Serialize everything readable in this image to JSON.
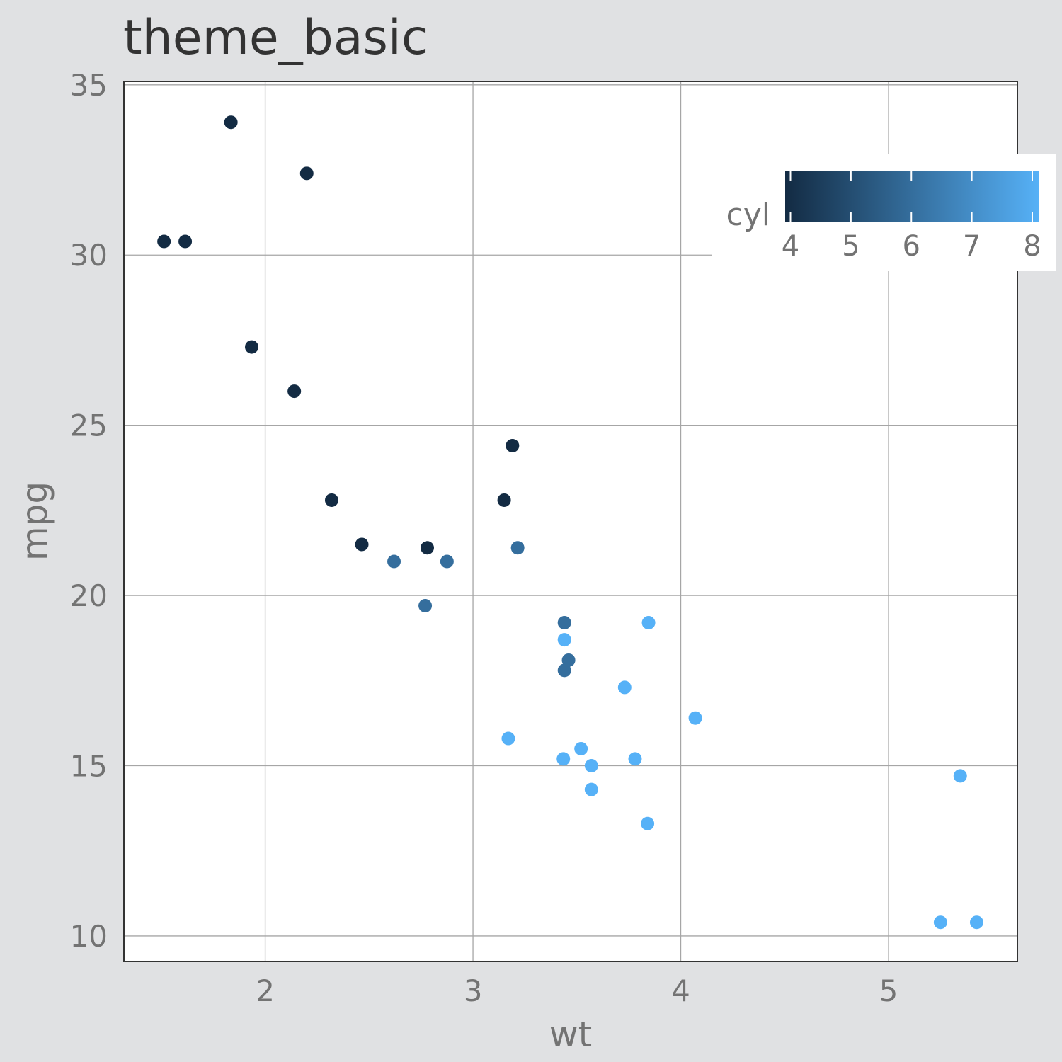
{
  "chart_data": {
    "type": "scatter",
    "title": "theme_basic",
    "xlabel": "wt",
    "ylabel": "mpg",
    "xlim": [
      1.32,
      5.62
    ],
    "ylim": [
      9.25,
      35.1
    ],
    "x_ticks": [
      2,
      3,
      4,
      5
    ],
    "y_ticks": [
      10,
      15,
      20,
      25,
      30,
      35
    ],
    "grid": true,
    "legend": {
      "title": "cyl",
      "type": "colorbar",
      "placement": "top-right",
      "ticks": [
        4,
        5,
        6,
        7,
        8
      ],
      "low_color": "#132B43",
      "high_color": "#56B1F7"
    },
    "colors": {
      "background": "#e0e1e3",
      "panel": "#ffffff",
      "grid": "#a6a6a6",
      "low": "#132B43",
      "high": "#56B1F7"
    },
    "points": [
      {
        "x": 2.62,
        "y": 21.0,
        "cyl": 6
      },
      {
        "x": 2.875,
        "y": 21.0,
        "cyl": 6
      },
      {
        "x": 2.32,
        "y": 22.8,
        "cyl": 4
      },
      {
        "x": 3.215,
        "y": 21.4,
        "cyl": 6
      },
      {
        "x": 3.44,
        "y": 18.7,
        "cyl": 8
      },
      {
        "x": 3.46,
        "y": 18.1,
        "cyl": 6
      },
      {
        "x": 3.57,
        "y": 14.3,
        "cyl": 8
      },
      {
        "x": 3.19,
        "y": 24.4,
        "cyl": 4
      },
      {
        "x": 3.15,
        "y": 22.8,
        "cyl": 4
      },
      {
        "x": 3.44,
        "y": 19.2,
        "cyl": 6
      },
      {
        "x": 3.44,
        "y": 17.8,
        "cyl": 6
      },
      {
        "x": 4.07,
        "y": 16.4,
        "cyl": 8
      },
      {
        "x": 3.73,
        "y": 17.3,
        "cyl": 8
      },
      {
        "x": 3.78,
        "y": 15.2,
        "cyl": 8
      },
      {
        "x": 5.25,
        "y": 10.4,
        "cyl": 8
      },
      {
        "x": 5.424,
        "y": 10.4,
        "cyl": 8
      },
      {
        "x": 5.345,
        "y": 14.7,
        "cyl": 8
      },
      {
        "x": 2.2,
        "y": 32.4,
        "cyl": 4
      },
      {
        "x": 1.615,
        "y": 30.4,
        "cyl": 4
      },
      {
        "x": 1.835,
        "y": 33.9,
        "cyl": 4
      },
      {
        "x": 2.465,
        "y": 21.5,
        "cyl": 4
      },
      {
        "x": 3.52,
        "y": 15.5,
        "cyl": 8
      },
      {
        "x": 3.435,
        "y": 15.2,
        "cyl": 8
      },
      {
        "x": 3.84,
        "y": 13.3,
        "cyl": 8
      },
      {
        "x": 3.845,
        "y": 19.2,
        "cyl": 8
      },
      {
        "x": 1.935,
        "y": 27.3,
        "cyl": 4
      },
      {
        "x": 2.14,
        "y": 26.0,
        "cyl": 4
      },
      {
        "x": 1.513,
        "y": 30.4,
        "cyl": 4
      },
      {
        "x": 3.17,
        "y": 15.8,
        "cyl": 8
      },
      {
        "x": 2.77,
        "y": 19.7,
        "cyl": 6
      },
      {
        "x": 3.57,
        "y": 15.0,
        "cyl": 8
      },
      {
        "x": 2.78,
        "y": 21.4,
        "cyl": 4
      }
    ]
  }
}
